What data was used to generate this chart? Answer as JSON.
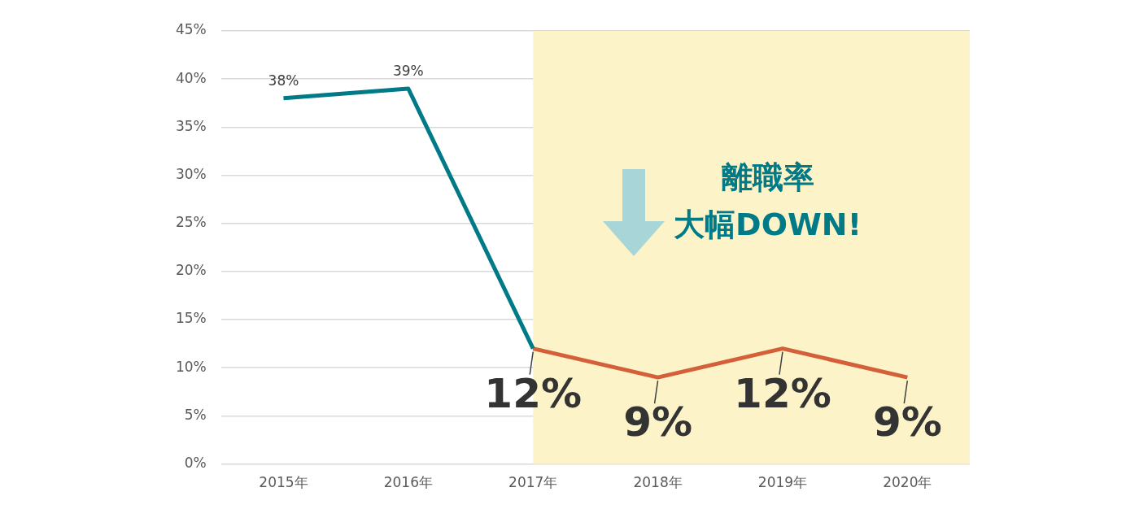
{
  "chart_data": {
    "type": "line",
    "categories": [
      "2015年",
      "2016年",
      "2017年",
      "2018年",
      "2019年",
      "2020年"
    ],
    "series": [
      {
        "color": "#007a87",
        "values": [
          38,
          39,
          12,
          null,
          null,
          null
        ],
        "value_labels": [
          "38%",
          "39%",
          null,
          null,
          null,
          null
        ]
      },
      {
        "color": "#d4603a",
        "values": [
          null,
          null,
          12,
          9,
          12,
          9
        ],
        "value_labels": [
          null,
          null,
          "12%",
          "9%",
          "12%",
          "9%"
        ]
      }
    ],
    "ylim": [
      0,
      45
    ],
    "yticks": [
      {
        "value": 0,
        "label": "0%"
      },
      {
        "value": 5,
        "label": "5%"
      },
      {
        "value": 10,
        "label": "10%"
      },
      {
        "value": 15,
        "label": "15%"
      },
      {
        "value": 20,
        "label": "20%"
      },
      {
        "value": 25,
        "label": "25%"
      },
      {
        "value": 30,
        "label": "30%"
      },
      {
        "value": 35,
        "label": "35%"
      },
      {
        "value": 40,
        "label": "40%"
      },
      {
        "value": 45,
        "label": "45%"
      }
    ],
    "grid": "y",
    "legend": false,
    "marker": "none",
    "line_style": "solid",
    "bands": [
      {
        "axis": "x",
        "from": "2017年",
        "to": "2020年",
        "color": "#fdf3c8"
      }
    ],
    "annotations": [
      "離職率",
      "大幅DOWN!"
    ]
  }
}
